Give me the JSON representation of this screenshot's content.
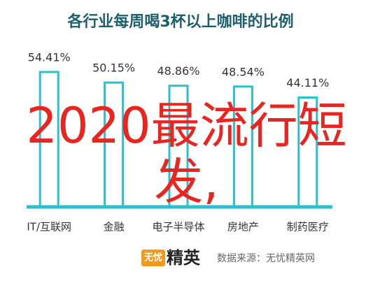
{
  "chart_data": {
    "type": "bar",
    "title": "各行业每周喝3杯以上咖啡的比例",
    "categories": [
      "IT/互联网",
      "金融",
      "电子半导体",
      "房地产",
      "制药医疗"
    ],
    "values": [
      54.41,
      50.15,
      48.86,
      48.54,
      44.11
    ],
    "value_labels": [
      "54.41%",
      "50.15%",
      "48.86%",
      "48.54%",
      "44.11%"
    ],
    "color": "#2bbfcf",
    "overlay_text": "2020最流行短发,",
    "logo": [
      "无忧",
      "精英"
    ],
    "source": "数据来源：无忧精英网"
  }
}
